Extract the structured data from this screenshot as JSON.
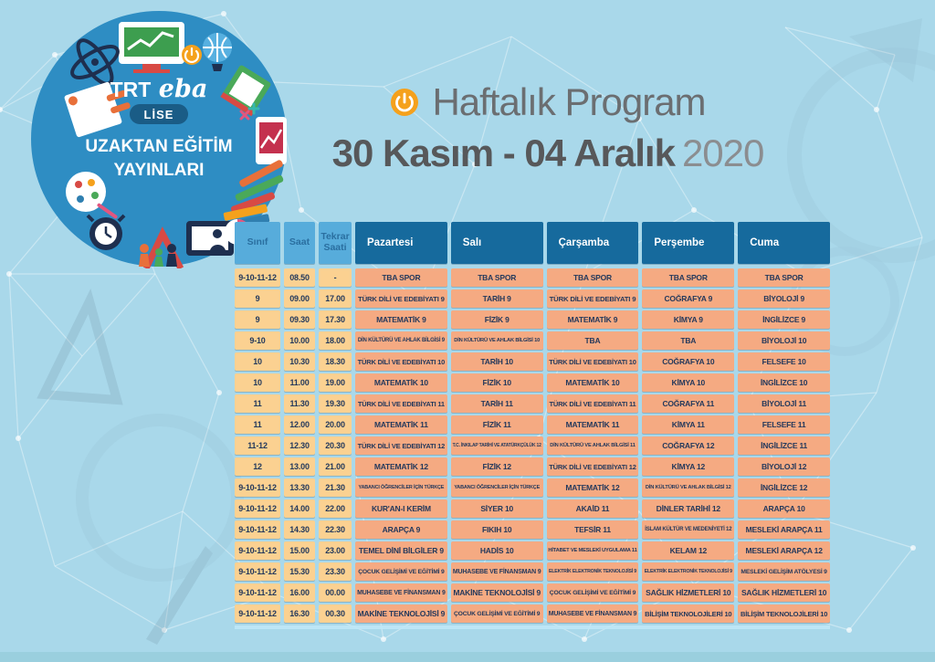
{
  "badge": {
    "brand_trt": "TRT",
    "brand_eba": "eba",
    "level": "LİSE",
    "line1": "UZAKTAN EĞİTİM",
    "line2": "YAYINLARI"
  },
  "title": {
    "heading": "Haftalık Program",
    "date_range": "30 Kasım - 04 Aralık",
    "year": "2020"
  },
  "colors": {
    "page_bg": "#a9d8ea",
    "badge_blue": "#2e8dc3",
    "pill_blue": "#1a5c86",
    "day_header_bg": "#166a9d",
    "col_header_bg": "#57acdb",
    "left_cell_bg": "#fbd191",
    "day_cell_bg": "#f5aa82",
    "cell_text": "#24395c",
    "accent_orange": "#f5a11c"
  },
  "schedule": {
    "headers": {
      "sinif": "Sınıf",
      "saat": "Saat",
      "tekrar": "Tekrar Saati",
      "days": [
        "Pazartesi",
        "Salı",
        "Çarşamba",
        "Perşembe",
        "Cuma"
      ]
    },
    "rows": [
      {
        "sinif": "9-10-11-12",
        "saat": "08.50",
        "tekrar": "-",
        "days": [
          "TBA SPOR",
          "TBA SPOR",
          "TBA SPOR",
          "TBA SPOR",
          "TBA SPOR"
        ]
      },
      {
        "sinif": "9",
        "saat": "09.00",
        "tekrar": "17.00",
        "days": [
          "TÜRK DİLİ VE EDEBİYATI 9",
          "TARİH 9",
          "TÜRK DİLİ VE EDEBİYATI 9",
          "COĞRAFYA 9",
          "BİYOLOJİ 9"
        ]
      },
      {
        "sinif": "9",
        "saat": "09.30",
        "tekrar": "17.30",
        "days": [
          "MATEMATİK 9",
          "FİZİK 9",
          "MATEMATİK 9",
          "KİMYA 9",
          "İNGİLİZCE 9"
        ]
      },
      {
        "sinif": "9-10",
        "saat": "10.00",
        "tekrar": "18.00",
        "days": [
          "DİN KÜLTÜRÜ VE AHLAK BİLGİSİ 9",
          "DİN KÜLTÜRÜ VE AHLAK BİLGİSİ 10",
          "TBA",
          "TBA",
          "BİYOLOJİ 10"
        ]
      },
      {
        "sinif": "10",
        "saat": "10.30",
        "tekrar": "18.30",
        "days": [
          "TÜRK DİLİ VE EDEBİYATI 10",
          "TARİH 10",
          "TÜRK DİLİ VE EDEBİYATI 10",
          "COĞRAFYA 10",
          "FELSEFE 10"
        ]
      },
      {
        "sinif": "10",
        "saat": "11.00",
        "tekrar": "19.00",
        "days": [
          "MATEMATİK 10",
          "FİZİK 10",
          "MATEMATİK 10",
          "KİMYA 10",
          "İNGİLİZCE 10"
        ]
      },
      {
        "sinif": "11",
        "saat": "11.30",
        "tekrar": "19.30",
        "days": [
          "TÜRK DİLİ VE EDEBİYATI 11",
          "TARİH 11",
          "TÜRK DİLİ VE EDEBİYATI 11",
          "COĞRAFYA 11",
          "BİYOLOJİ 11"
        ]
      },
      {
        "sinif": "11",
        "saat": "12.00",
        "tekrar": "20.00",
        "days": [
          "MATEMATİK 11",
          "FİZİK 11",
          "MATEMATİK 11",
          "KİMYA 11",
          "FELSEFE 11"
        ]
      },
      {
        "sinif": "11-12",
        "saat": "12.30",
        "tekrar": "20.30",
        "days": [
          "TÜRK DİLİ VE EDEBİYATI 12",
          "T.C. İNKILAP TARİHİ VE ATATÜRKÇÜLÜK 12",
          "DİN KÜLTÜRÜ VE AHLAK BİLGİSİ 11",
          "COĞRAFYA 12",
          "İNGİLİZCE 11"
        ]
      },
      {
        "sinif": "12",
        "saat": "13.00",
        "tekrar": "21.00",
        "days": [
          "MATEMATİK 12",
          "FİZİK 12",
          "TÜRK DİLİ VE EDEBİYATI 12",
          "KİMYA 12",
          "BİYOLOJİ 12"
        ]
      },
      {
        "sinif": "9-10-11-12",
        "saat": "13.30",
        "tekrar": "21.30",
        "days": [
          "YABANCI ÖĞRENCİLER İÇİN TÜRKÇE",
          "YABANCI ÖĞRENCİLER İÇİN TÜRKÇE",
          "MATEMATİK 12",
          "DİN KÜLTÜRÜ VE AHLAK BİLGİSİ 12",
          "İNGİLİZCE 12"
        ]
      },
      {
        "sinif": "9-10-11-12",
        "saat": "14.00",
        "tekrar": "22.00",
        "days": [
          "KUR'AN-I KERİM",
          "SİYER 10",
          "AKAİD 11",
          "DİNLER TARİHİ 12",
          "ARAPÇA 10"
        ]
      },
      {
        "sinif": "9-10-11-12",
        "saat": "14.30",
        "tekrar": "22.30",
        "days": [
          "ARAPÇA 9",
          "FIKIH 10",
          "TEFSİR 11",
          "İSLAM KÜLTÜR VE MEDENİYETİ 12",
          "MESLEKİ ARAPÇA 11"
        ]
      },
      {
        "sinif": "9-10-11-12",
        "saat": "15.00",
        "tekrar": "23.00",
        "days": [
          "TEMEL DİNİ BİLGİLER 9",
          "HADİS 10",
          "HİTABET VE MESLEKİ UYGULAMA 11",
          "KELAM 12",
          "MESLEKİ ARAPÇA 12"
        ]
      },
      {
        "sinif": "9-10-11-12",
        "saat": "15.30",
        "tekrar": "23.30",
        "days": [
          "ÇOCUK GELİŞİMİ VE EĞİTİMİ 9",
          "MUHASEBE VE FİNANSMAN 9",
          "ELEKTRİK ELEKTRONİK TEKNOLOJİSİ 9",
          "ELEKTRİK ELEKTRONİK TEKNOLOJİSİ 9",
          "MESLEKİ GELİŞİM ATÖLYESİ 9"
        ]
      },
      {
        "sinif": "9-10-11-12",
        "saat": "16.00",
        "tekrar": "00.00",
        "days": [
          "MUHASEBE VE FİNANSMAN 9",
          "MAKİNE TEKNOLOJİSİ 9",
          "ÇOCUK GELİŞİMİ VE EĞİTİMİ 9",
          "SAĞLIK HİZMETLERİ 10",
          "SAĞLIK HİZMETLERİ 10"
        ]
      },
      {
        "sinif": "9-10-11-12",
        "saat": "16.30",
        "tekrar": "00.30",
        "days": [
          "MAKİNE TEKNOLOJİSİ 9",
          "ÇOCUK GELİŞİMİ VE EĞİTİMİ 9",
          "MUHASEBE VE FİNANSMAN 9",
          "BİLİŞİM TEKNOLOJİLERİ 10",
          "BİLİŞİM TEKNOLOJİLERİ 10"
        ]
      }
    ]
  }
}
